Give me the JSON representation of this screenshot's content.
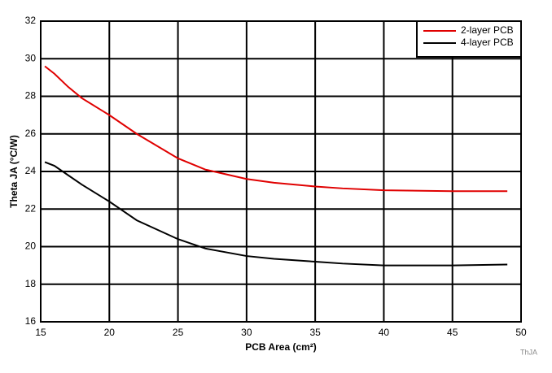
{
  "chart_data": {
    "type": "line",
    "xlabel": "PCB Area (cm²)",
    "ylabel": "Theta JA (°C/W)",
    "footnote": "ThJA",
    "x": [
      15.3,
      16,
      17,
      18,
      20,
      22,
      25,
      27,
      30,
      32,
      35,
      37,
      40,
      45,
      49
    ],
    "series": [
      {
        "name": "2-layer PCB",
        "color": "#e00000",
        "values": [
          29.6,
          29.2,
          28.5,
          27.9,
          27.0,
          26.0,
          24.7,
          24.1,
          23.6,
          23.4,
          23.2,
          23.1,
          23.0,
          22.95,
          22.95
        ]
      },
      {
        "name": "4-layer PCB",
        "color": "#000000",
        "values": [
          24.5,
          24.3,
          23.8,
          23.3,
          22.4,
          21.4,
          20.4,
          19.9,
          19.5,
          19.35,
          19.2,
          19.1,
          19.0,
          19.0,
          19.05
        ]
      }
    ],
    "xlim": [
      15,
      50
    ],
    "xticks": [
      15,
      20,
      25,
      30,
      35,
      40,
      45,
      50
    ],
    "ylim": [
      16,
      32
    ],
    "yticks": [
      16,
      18,
      20,
      22,
      24,
      26,
      28,
      30,
      32
    ],
    "grid": true,
    "legend": "upper right"
  }
}
